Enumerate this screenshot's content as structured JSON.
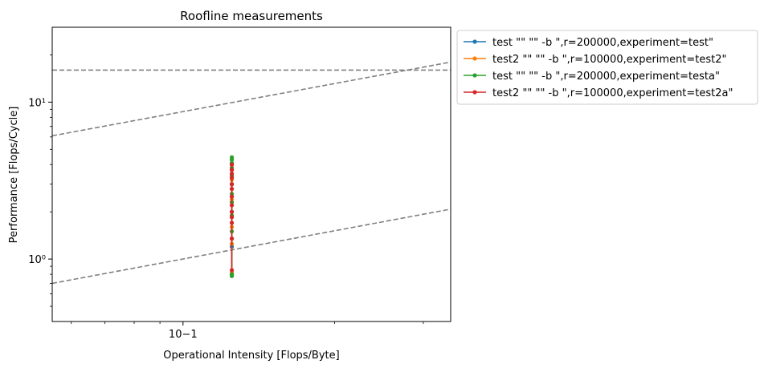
{
  "chart_data": {
    "type": "line",
    "title": "Roofline measurements",
    "xlabel": "Operational Intensity [Flops/Byte]",
    "ylabel": "Performance [Flops/Cycle]",
    "xscale": "log",
    "yscale": "log",
    "xlim": [
      0.055,
      0.34
    ],
    "ylim": [
      0.4,
      30
    ],
    "x_ticks": [
      {
        "value": 0.1,
        "label": "10−1"
      }
    ],
    "y_ticks": [
      {
        "value": 1,
        "label": "10⁰"
      },
      {
        "value": 10,
        "label": "10¹"
      }
    ],
    "grid": false,
    "legend_position": "outside-right",
    "reference_lines": [
      {
        "style": "dashed",
        "color": "#808080",
        "points": [
          [
            0.055,
            16
          ],
          [
            0.34,
            16
          ]
        ]
      },
      {
        "style": "dashed",
        "color": "#808080",
        "points": [
          [
            0.055,
            6.1
          ],
          [
            0.34,
            18
          ]
        ]
      },
      {
        "style": "dashed",
        "color": "#808080",
        "points": [
          [
            0.055,
            0.7
          ],
          [
            0.34,
            2.08
          ]
        ]
      }
    ],
    "series": [
      {
        "name": "test \"\"  \"\" -b \",r=200000,experiment=test\"",
        "color": "#1f77b4",
        "x": [
          0.125,
          0.125,
          0.125,
          0.125,
          0.125,
          0.125
        ],
        "y": [
          0.8,
          1.2,
          2.0,
          3.0,
          3.8,
          4.3
        ]
      },
      {
        "name": "test2 \"\"  \"\" -b \",r=100000,experiment=test2\"",
        "color": "#ff7f0e",
        "x": [
          0.125,
          0.125,
          0.125,
          0.125,
          0.125,
          0.125,
          0.125,
          0.125,
          0.125,
          0.125
        ],
        "y": [
          0.82,
          1.25,
          1.35,
          1.6,
          1.85,
          2.4,
          2.8,
          3.2,
          3.7,
          4.0
        ]
      },
      {
        "name": "test \"\"  \"\" -b \",r=200000,experiment=testa\"",
        "color": "#2ca02c",
        "x": [
          0.125,
          0.125,
          0.125,
          0.125,
          0.125,
          0.125,
          0.125,
          0.125,
          0.125,
          0.125,
          0.125,
          0.125
        ],
        "y": [
          0.78,
          0.8,
          1.5,
          1.9,
          2.3,
          2.6,
          3.0,
          3.4,
          3.8,
          4.1,
          4.3,
          4.45
        ]
      },
      {
        "name": "test2 \"\"  \"\" -b \",r=100000,experiment=test2a\"",
        "color": "#d62728",
        "x": [
          0.125,
          0.125,
          0.125,
          0.125,
          0.125,
          0.125,
          0.125,
          0.125,
          0.125,
          0.125,
          0.125,
          0.125,
          0.125
        ],
        "y": [
          0.85,
          1.35,
          1.7,
          1.85,
          2.0,
          2.2,
          2.5,
          2.8,
          3.0,
          3.3,
          3.5,
          3.7,
          4.0
        ]
      }
    ]
  }
}
